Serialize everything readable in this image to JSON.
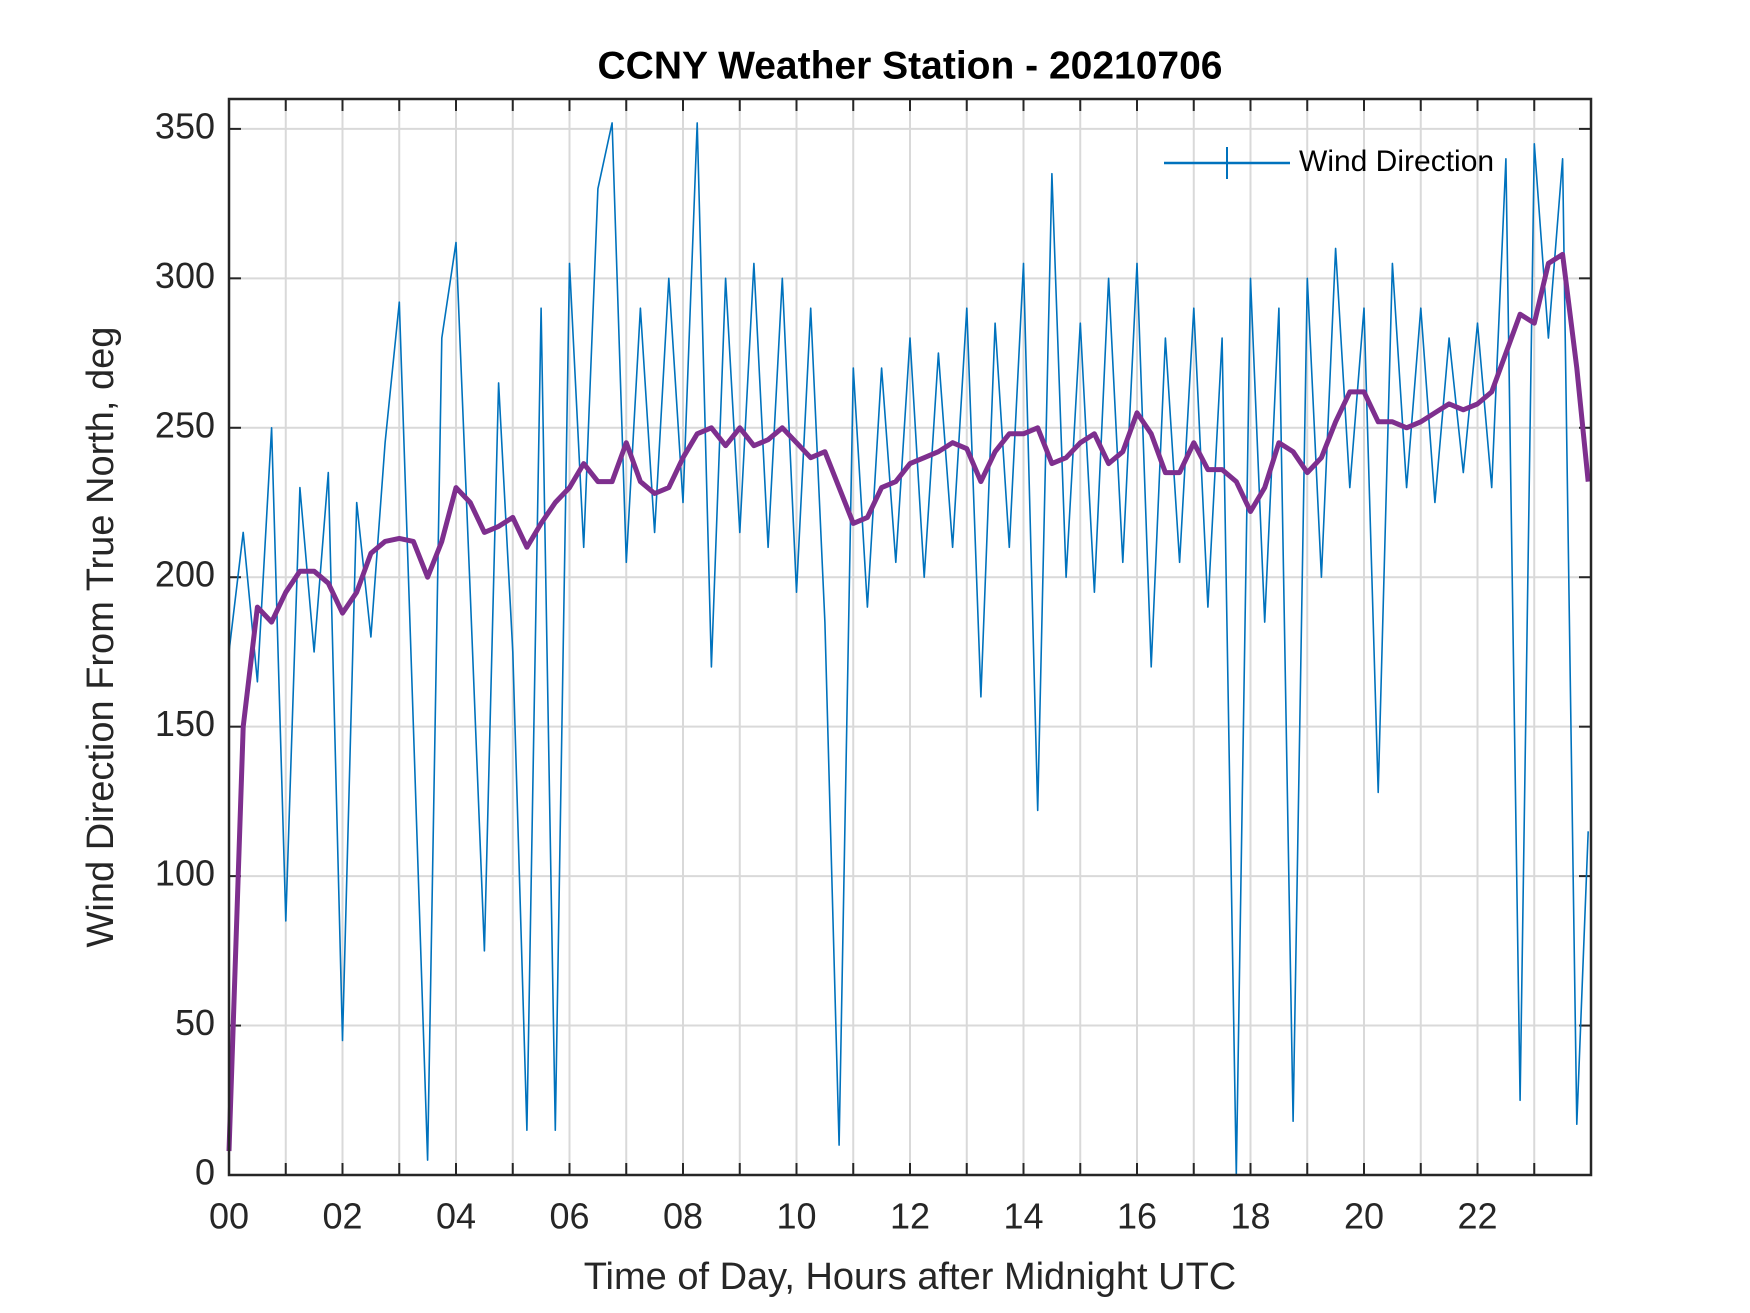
{
  "chart_data": {
    "type": "line",
    "title": "CCNY Weather Station - 20210706",
    "xlabel": "Time of Day, Hours after Midnight UTC",
    "ylabel": "Wind Direction From True North, deg",
    "x": [
      0,
      0.25,
      0.5,
      0.75,
      1,
      1.25,
      1.5,
      1.75,
      2,
      2.25,
      2.5,
      2.75,
      3,
      3.25,
      3.5,
      3.75,
      4,
      4.25,
      4.5,
      4.75,
      5,
      5.25,
      5.5,
      5.75,
      6,
      6.25,
      6.5,
      6.75,
      7,
      7.25,
      7.5,
      7.75,
      8,
      8.25,
      8.5,
      8.75,
      9,
      9.25,
      9.5,
      9.75,
      10,
      10.25,
      10.5,
      10.75,
      11,
      11.25,
      11.5,
      11.75,
      12,
      12.25,
      12.5,
      12.75,
      13,
      13.25,
      13.5,
      13.75,
      14,
      14.25,
      14.5,
      14.75,
      15,
      15.25,
      15.5,
      15.75,
      16,
      16.25,
      16.5,
      16.75,
      17,
      17.25,
      17.5,
      17.75,
      18,
      18.25,
      18.5,
      18.75,
      19,
      19.25,
      19.5,
      19.75,
      20,
      20.25,
      20.5,
      20.75,
      21,
      21.25,
      21.5,
      21.75,
      22,
      22.25,
      22.5,
      22.75,
      23,
      23.25,
      23.5,
      23.75,
      23.95
    ],
    "series": [
      {
        "name": "Wind Direction",
        "color": "#0072bd",
        "width": 1.6,
        "values": [
          175,
          215,
          165,
          250,
          85,
          230,
          175,
          235,
          45,
          225,
          180,
          245,
          292,
          150,
          5,
          280,
          312,
          195,
          75,
          265,
          175,
          15,
          290,
          15,
          305,
          210,
          330,
          352,
          205,
          290,
          215,
          300,
          225,
          352,
          170,
          300,
          215,
          305,
          210,
          300,
          195,
          290,
          185,
          10,
          270,
          190,
          270,
          205,
          280,
          200,
          275,
          210,
          290,
          160,
          285,
          210,
          305,
          122,
          335,
          200,
          285,
          195,
          300,
          205,
          305,
          170,
          280,
          205,
          290,
          190,
          280,
          0,
          300,
          185,
          290,
          18,
          300,
          200,
          310,
          230,
          290,
          128,
          305,
          230,
          290,
          225,
          280,
          235,
          285,
          230,
          340,
          25,
          345,
          280,
          340,
          17,
          115
        ]
      },
      {
        "color": "#7e2f8e",
        "width": 5,
        "values": [
          8,
          150,
          190,
          185,
          195,
          202,
          202,
          198,
          188,
          195,
          208,
          212,
          213,
          212,
          200,
          212,
          230,
          225,
          215,
          217,
          220,
          210,
          218,
          225,
          230,
          238,
          232,
          232,
          245,
          232,
          228,
          230,
          240,
          248,
          250,
          244,
          250,
          244,
          246,
          250,
          245,
          240,
          242,
          230,
          218,
          220,
          230,
          232,
          238,
          240,
          242,
          245,
          243,
          232,
          242,
          248,
          248,
          250,
          238,
          240,
          245,
          248,
          238,
          242,
          255,
          248,
          235,
          235,
          245,
          236,
          236,
          232,
          222,
          230,
          245,
          242,
          235,
          240,
          252,
          262,
          262,
          252,
          252,
          250,
          252,
          255,
          258,
          256,
          258,
          262,
          275,
          288,
          285,
          305,
          308,
          270,
          232
        ]
      }
    ],
    "xlim": [
      0,
      24
    ],
    "xticks": [
      {
        "value": 0,
        "label": "00"
      },
      {
        "value": 2,
        "label": "02"
      },
      {
        "value": 4,
        "label": "04"
      },
      {
        "value": 6,
        "label": "06"
      },
      {
        "value": 8,
        "label": "08"
      },
      {
        "value": 10,
        "label": "10"
      },
      {
        "value": 12,
        "label": "12"
      },
      {
        "value": 14,
        "label": "14"
      },
      {
        "value": 16,
        "label": "16"
      },
      {
        "value": 18,
        "label": "18"
      },
      {
        "value": 20,
        "label": "20"
      },
      {
        "value": 22,
        "label": "22"
      }
    ],
    "xminorticks": [
      1,
      3,
      5,
      7,
      9,
      11,
      13,
      15,
      17,
      19,
      21,
      23
    ],
    "ylim": [
      0,
      360
    ],
    "yticks": [
      0,
      50,
      100,
      150,
      200,
      250,
      300,
      350
    ],
    "grid": true,
    "legend": "northeast"
  }
}
